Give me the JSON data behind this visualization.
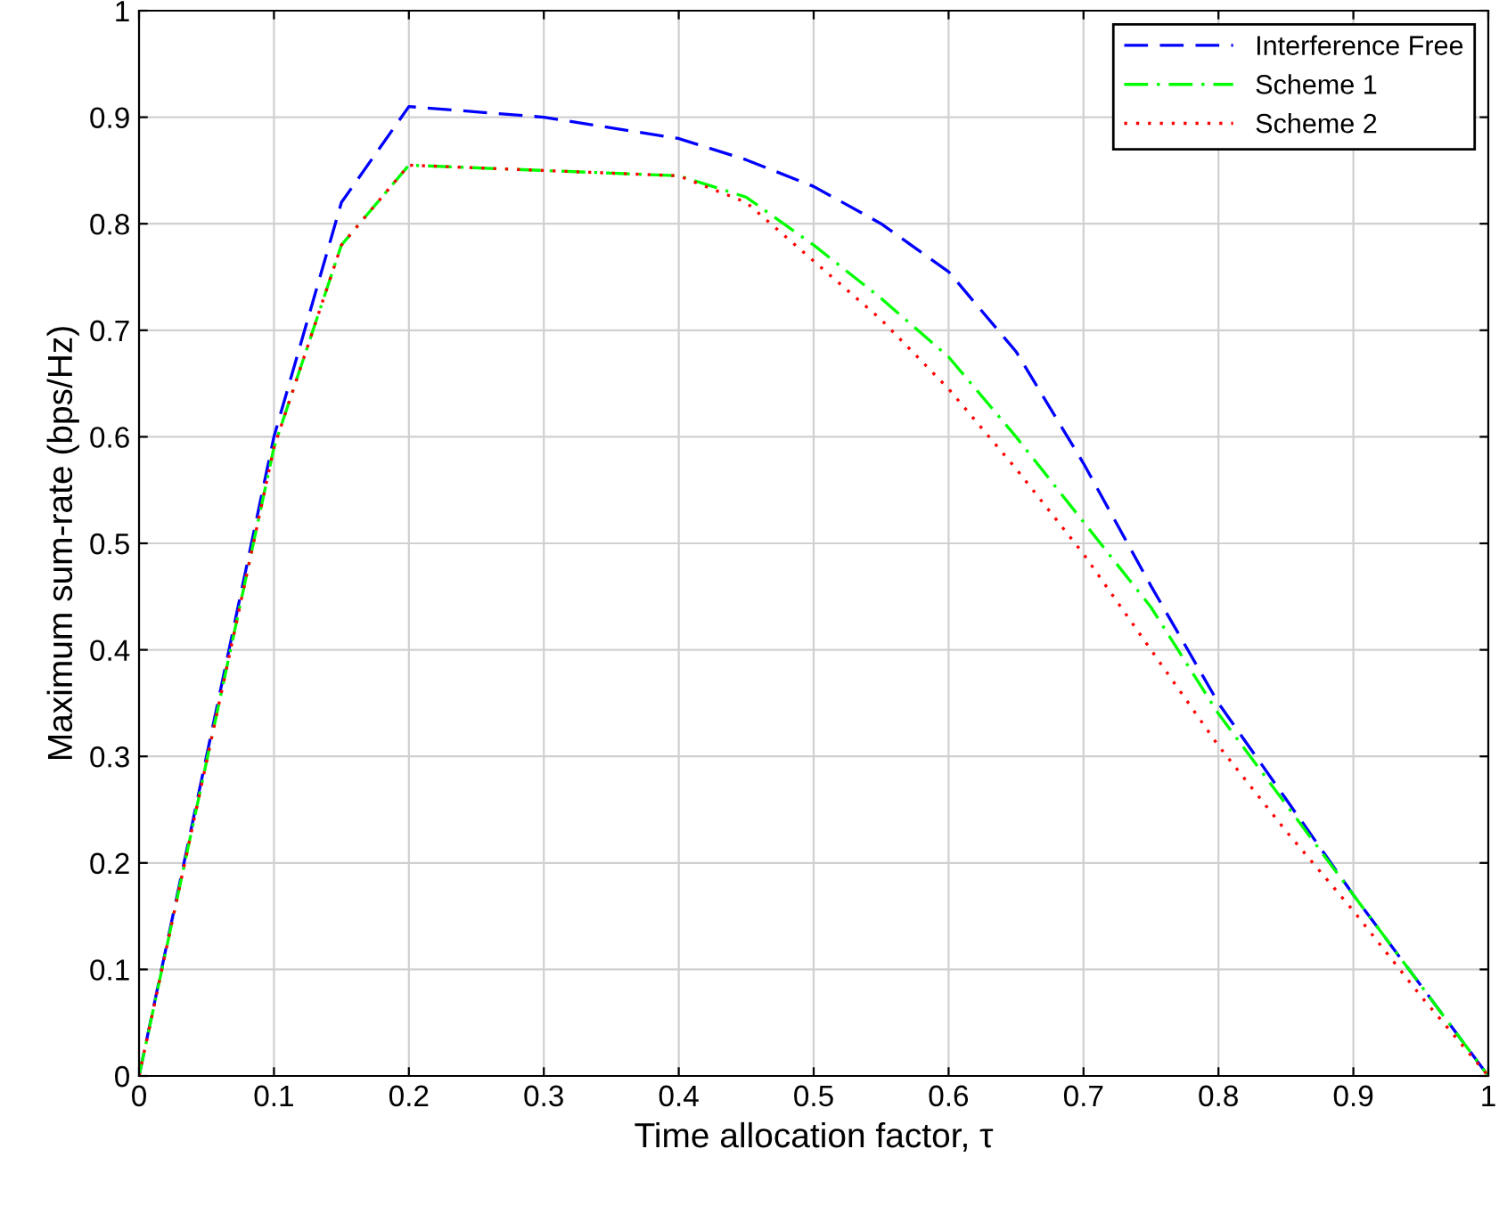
{
  "chart_data": {
    "type": "line",
    "xlabel": "Time allocation factor, τ",
    "ylabel": "Maximum sum-rate (bps/Hz)",
    "x": [
      0,
      0.1,
      0.15,
      0.2,
      0.3,
      0.4,
      0.45,
      0.5,
      0.55,
      0.6,
      0.65,
      0.7,
      0.75,
      0.8,
      0.85,
      0.9,
      0.95,
      1
    ],
    "series": [
      {
        "name": "Interference Free",
        "color": "#0000ff",
        "line_style": "dashed",
        "values": [
          0,
          0.6,
          0.82,
          0.91,
          0.9,
          0.88,
          0.86,
          0.835,
          0.8,
          0.755,
          0.68,
          0.575,
          0.46,
          0.35,
          0.26,
          0.17,
          0.085,
          0
        ]
      },
      {
        "name": "Scheme 1",
        "color": "#00ff00",
        "line_style": "dashdot",
        "values": [
          0,
          0.59,
          0.78,
          0.855,
          0.85,
          0.845,
          0.825,
          0.78,
          0.73,
          0.675,
          0.6,
          0.52,
          0.44,
          0.34,
          0.255,
          0.17,
          0.085,
          0
        ]
      },
      {
        "name": "Scheme 2",
        "color": "#ff0000",
        "line_style": "dotted",
        "values": [
          0,
          0.59,
          0.78,
          0.855,
          0.85,
          0.845,
          0.82,
          0.765,
          0.71,
          0.645,
          0.57,
          0.49,
          0.4,
          0.31,
          0.23,
          0.155,
          0.075,
          0
        ]
      }
    ],
    "xlim": [
      0,
      1
    ],
    "ylim": [
      0,
      1
    ],
    "xticks": [
      0,
      0.1,
      0.2,
      0.3,
      0.4,
      0.5,
      0.6,
      0.7,
      0.8,
      0.9,
      1
    ],
    "yticks": [
      0,
      0.1,
      0.2,
      0.3,
      0.4,
      0.5,
      0.6,
      0.7,
      0.8,
      0.9,
      1
    ],
    "grid": true,
    "legend": "top right",
    "marker": "none"
  }
}
